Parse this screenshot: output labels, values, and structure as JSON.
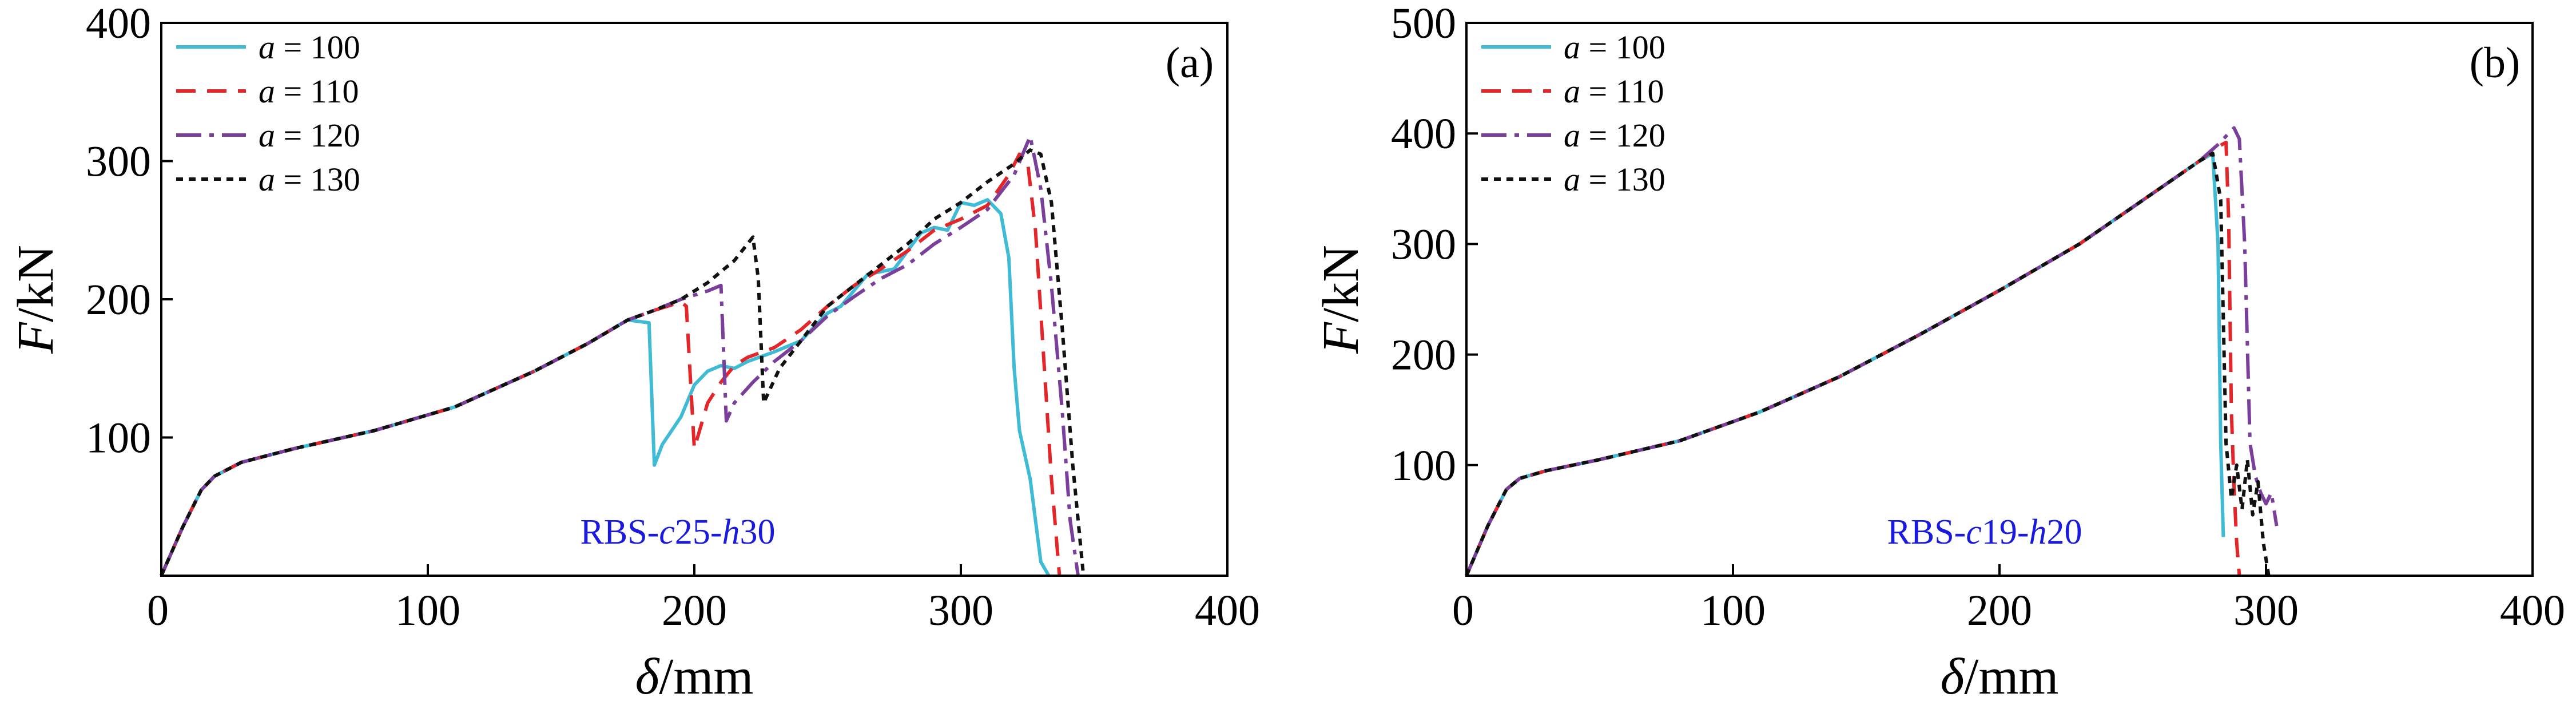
{
  "chart_data": [
    {
      "type": "line",
      "panel_label": "(a)",
      "annotation": {
        "prefix": "RBS-",
        "c_sym": "c",
        "c_val": "25",
        "sep": "-",
        "h_sym": "h",
        "h_val": "30"
      },
      "xlabel": {
        "sym": "δ",
        "unit": "/mm"
      },
      "ylabel": {
        "sym": "F",
        "unit": "/kN"
      },
      "xlim": [
        0,
        400
      ],
      "ylim": [
        0,
        400
      ],
      "xticks": [
        "0",
        "100",
        "200",
        "300",
        "400"
      ],
      "yticks": [
        "100",
        "200",
        "300",
        "400"
      ],
      "legend": {
        "position": "top-left"
      },
      "series": [
        {
          "name": "a = 100",
          "sym": "a",
          "rest": " = 100",
          "color": "#3FBBD6",
          "dash": "solid",
          "x": [
            0,
            8,
            15,
            20,
            30,
            50,
            80,
            110,
            140,
            160,
            175,
            183,
            185,
            188,
            195,
            200,
            205,
            210,
            215,
            220,
            230,
            240,
            250,
            255,
            265,
            275,
            285,
            290,
            295,
            300,
            305,
            310,
            315,
            318,
            320,
            322,
            326,
            328,
            330,
            333
          ],
          "y": [
            0,
            35,
            62,
            72,
            82,
            92,
            105,
            122,
            148,
            168,
            185,
            183,
            80,
            95,
            115,
            138,
            148,
            152,
            150,
            155,
            162,
            170,
            190,
            195,
            218,
            222,
            248,
            252,
            250,
            270,
            268,
            272,
            262,
            230,
            150,
            105,
            70,
            40,
            10,
            0
          ]
        },
        {
          "name": "a = 110",
          "sym": "a",
          "rest": " = 110",
          "color": "#E3262A",
          "dash": "34,20",
          "x": [
            0,
            8,
            15,
            20,
            30,
            50,
            80,
            110,
            140,
            160,
            175,
            185,
            195,
            197,
            200,
            205,
            210,
            215,
            220,
            230,
            240,
            250,
            260,
            270,
            280,
            290,
            300,
            310,
            318,
            322,
            325,
            328,
            331,
            334,
            337
          ],
          "y": [
            0,
            35,
            62,
            72,
            82,
            92,
            105,
            122,
            148,
            168,
            185,
            192,
            198,
            195,
            92,
            125,
            140,
            152,
            158,
            165,
            178,
            195,
            210,
            222,
            235,
            250,
            258,
            268,
            290,
            305,
            300,
            250,
            160,
            70,
            0
          ]
        },
        {
          "name": "a = 120",
          "sym": "a",
          "rest": " = 120",
          "color": "#7A3F9A",
          "dash": "44,14,8,14",
          "x": [
            0,
            8,
            15,
            20,
            30,
            50,
            80,
            110,
            140,
            160,
            175,
            185,
            195,
            205,
            210,
            212,
            215,
            222,
            230,
            240,
            250,
            260,
            270,
            280,
            290,
            300,
            310,
            320,
            326,
            330,
            334,
            338,
            341,
            344
          ],
          "y": [
            0,
            35,
            62,
            72,
            82,
            92,
            105,
            122,
            148,
            168,
            185,
            192,
            200,
            206,
            210,
            112,
            125,
            140,
            155,
            170,
            188,
            202,
            215,
            225,
            240,
            252,
            265,
            290,
            318,
            280,
            210,
            120,
            40,
            0
          ]
        },
        {
          "name": "a = 130",
          "sym": "a",
          "rest": " = 130",
          "color": "#111111",
          "dash": "12,10",
          "x": [
            0,
            8,
            15,
            20,
            30,
            50,
            80,
            110,
            140,
            160,
            175,
            185,
            195,
            205,
            215,
            222,
            224,
            226,
            232,
            240,
            250,
            260,
            270,
            280,
            290,
            300,
            310,
            320,
            326,
            330,
            334,
            338,
            342,
            346
          ],
          "y": [
            0,
            35,
            62,
            72,
            82,
            92,
            105,
            122,
            148,
            168,
            185,
            192,
            200,
            212,
            228,
            245,
            215,
            125,
            150,
            170,
            195,
            210,
            225,
            240,
            258,
            270,
            285,
            298,
            308,
            305,
            270,
            180,
            80,
            0
          ]
        }
      ]
    },
    {
      "type": "line",
      "panel_label": "(b)",
      "annotation": {
        "prefix": "RBS-",
        "c_sym": "c",
        "c_val": "19",
        "sep": "-",
        "h_sym": "h",
        "h_val": "20"
      },
      "xlabel": {
        "sym": "δ",
        "unit": "/mm"
      },
      "ylabel": {
        "sym": "F",
        "unit": "/kN"
      },
      "xlim": [
        0,
        400
      ],
      "ylim": [
        0,
        500
      ],
      "xticks": [
        "0",
        "100",
        "200",
        "300",
        "400"
      ],
      "yticks": [
        "100",
        "200",
        "300",
        "400",
        "500"
      ],
      "legend": {
        "position": "top-left"
      },
      "series": [
        {
          "name": "a = 100",
          "sym": "a",
          "rest": " = 100",
          "color": "#3FBBD6",
          "dash": "solid",
          "x": [
            0,
            8,
            15,
            20,
            30,
            50,
            80,
            110,
            140,
            170,
            200,
            230,
            260,
            275,
            280,
            282,
            283,
            284
          ],
          "y": [
            0,
            45,
            78,
            88,
            95,
            105,
            122,
            148,
            180,
            218,
            258,
            300,
            350,
            375,
            382,
            300,
            120,
            35
          ]
        },
        {
          "name": "a = 110",
          "sym": "a",
          "rest": " = 110",
          "color": "#E3262A",
          "dash": "34,20",
          "x": [
            0,
            8,
            15,
            20,
            30,
            50,
            80,
            110,
            140,
            170,
            200,
            230,
            260,
            275,
            282,
            285,
            286,
            287,
            288,
            289,
            290
          ],
          "y": [
            0,
            45,
            78,
            88,
            95,
            105,
            122,
            148,
            180,
            218,
            258,
            300,
            350,
            375,
            388,
            392,
            320,
            150,
            80,
            30,
            0
          ]
        },
        {
          "name": "a = 120",
          "sym": "a",
          "rest": " = 120",
          "color": "#7A3F9A",
          "dash": "44,14,8,14",
          "x": [
            0,
            8,
            15,
            20,
            30,
            50,
            80,
            110,
            140,
            170,
            200,
            230,
            260,
            275,
            282,
            288,
            290,
            292,
            294,
            296,
            298,
            300,
            302,
            304
          ],
          "y": [
            0,
            45,
            78,
            88,
            95,
            105,
            122,
            148,
            180,
            218,
            258,
            300,
            350,
            375,
            390,
            405,
            395,
            300,
            120,
            90,
            75,
            65,
            75,
            45
          ]
        },
        {
          "name": "a = 130",
          "sym": "a",
          "rest": " = 130",
          "color": "#111111",
          "dash": "12,10",
          "x": [
            0,
            8,
            15,
            20,
            30,
            50,
            80,
            110,
            140,
            170,
            200,
            230,
            260,
            275,
            280,
            283,
            285,
            287,
            289,
            291,
            293,
            295,
            297,
            299,
            301
          ],
          "y": [
            0,
            45,
            78,
            88,
            95,
            105,
            122,
            148,
            180,
            218,
            258,
            300,
            350,
            375,
            382,
            340,
            120,
            70,
            100,
            60,
            105,
            55,
            85,
            30,
            0
          ]
        }
      ]
    }
  ]
}
